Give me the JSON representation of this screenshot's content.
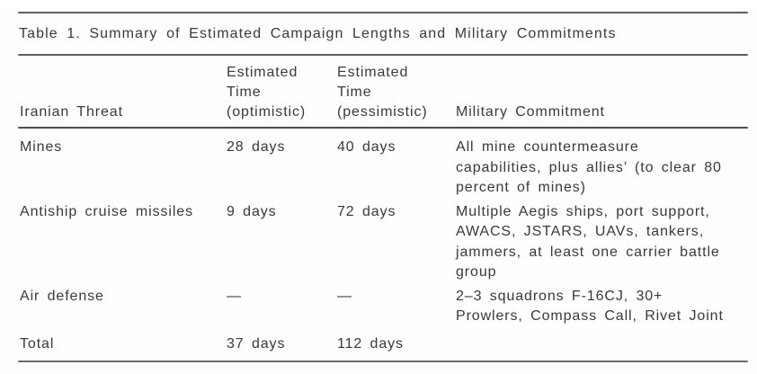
{
  "document": {
    "title": "Table 1. Summary of Estimated Campaign Lengths and Military Commitments"
  },
  "table": {
    "columns": [
      {
        "label": "Iranian Threat"
      },
      {
        "label_lines": [
          "Estimated",
          "Time",
          "(optimistic)"
        ]
      },
      {
        "label_lines": [
          "Estimated",
          "Time",
          "(pessimistic)"
        ]
      },
      {
        "label": "Military Commitment"
      }
    ],
    "rows": [
      {
        "threat": "Mines",
        "optimistic": "28 days",
        "pessimistic": "40 days",
        "commitment_lines": [
          "All mine countermeasure",
          "capabilities, plus allies’ (to clear 80",
          "percent of mines)"
        ]
      },
      {
        "threat": "Antiship cruise missiles",
        "optimistic": "9 days",
        "pessimistic": "72 days",
        "commitment_lines": [
          "Multiple Aegis ships, port support,",
          "AWACS, JSTARS, UAVs, tankers,",
          "jammers, at least one carrier battle",
          "group"
        ]
      },
      {
        "threat": "Air defense",
        "optimistic": "—",
        "pessimistic": "—",
        "commitment_lines": [
          "2–3 squadrons F-16CJ, 30+",
          "Prowlers, Compass Call, Rivet Joint"
        ]
      },
      {
        "threat": "Total",
        "optimistic": "37 days",
        "pessimistic": "112 days",
        "commitment_lines": []
      }
    ]
  },
  "colors": {
    "background": "#ffffff",
    "text": "#37393c",
    "rule": "#5d5e62"
  }
}
